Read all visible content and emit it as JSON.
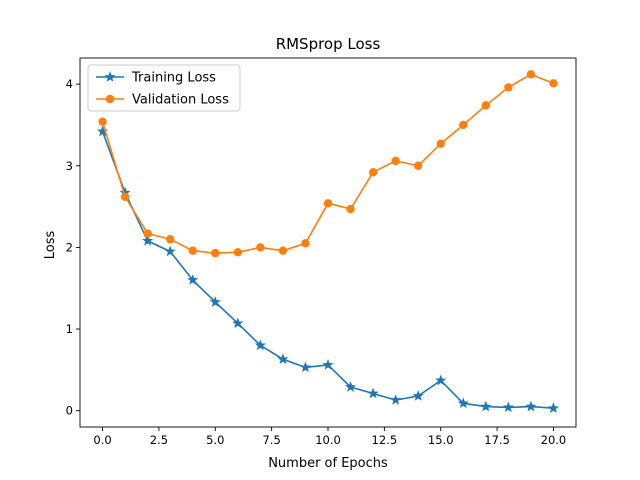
{
  "chart_data": {
    "type": "line",
    "title": "RMSprop Loss",
    "xlabel": "Number of Epochs",
    "ylabel": "Loss",
    "xlim": [
      -1,
      21
    ],
    "ylim": [
      -0.2,
      4.32
    ],
    "xticks": [
      0,
      2.5,
      5,
      7.5,
      10,
      12.5,
      15,
      17.5,
      20
    ],
    "xtick_labels": [
      "0.0",
      "2.5",
      "5.0",
      "7.5",
      "10.0",
      "12.5",
      "15.0",
      "17.5",
      "20.0"
    ],
    "yticks": [
      0,
      1,
      2,
      3,
      4
    ],
    "ytick_labels": [
      "0",
      "1",
      "2",
      "3",
      "4"
    ],
    "grid": false,
    "legend_position": "upper-left",
    "x": [
      0,
      1,
      2,
      3,
      4,
      5,
      6,
      7,
      8,
      9,
      10,
      11,
      12,
      13,
      14,
      15,
      16,
      17,
      18,
      19,
      20
    ],
    "series": [
      {
        "name": "Training Loss",
        "color": "#1f77b4",
        "marker": "star",
        "values": [
          3.42,
          2.67,
          2.08,
          1.95,
          1.6,
          1.33,
          1.07,
          0.8,
          0.63,
          0.53,
          0.56,
          0.29,
          0.21,
          0.13,
          0.18,
          0.37,
          0.09,
          0.05,
          0.04,
          0.05,
          0.03
        ]
      },
      {
        "name": "Validation Loss",
        "color": "#ff7f0e",
        "marker": "circle",
        "values": [
          3.54,
          2.62,
          2.17,
          2.1,
          1.96,
          1.93,
          1.94,
          2.0,
          1.96,
          2.05,
          2.54,
          2.47,
          2.92,
          3.06,
          3.0,
          3.27,
          3.5,
          3.74,
          3.96,
          4.12,
          4.01
        ]
      }
    ]
  }
}
